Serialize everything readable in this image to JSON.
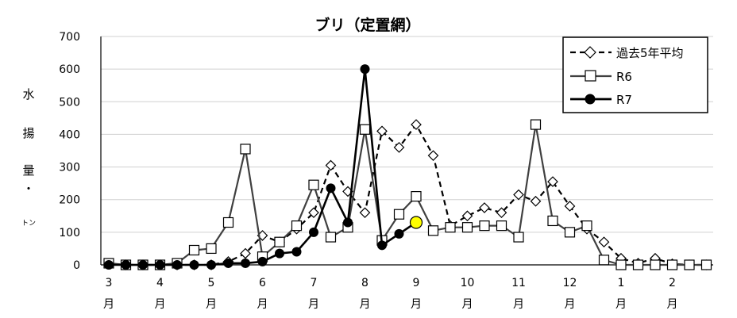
{
  "chart_data": {
    "type": "line",
    "title": "ブリ（定置網）",
    "ylabel_chars": [
      "水",
      "揚",
      "量",
      "・",
      "トン"
    ],
    "ylim": [
      0,
      700
    ],
    "yticks": [
      0,
      100,
      200,
      300,
      400,
      500,
      600,
      700
    ],
    "grid": true,
    "legend_position": "top-right",
    "month_labels": [
      {
        "num": "3",
        "unit": "月",
        "x_index": 0
      },
      {
        "num": "4",
        "unit": "月",
        "x_index": 3
      },
      {
        "num": "5",
        "unit": "月",
        "x_index": 6
      },
      {
        "num": "6",
        "unit": "月",
        "x_index": 9
      },
      {
        "num": "7",
        "unit": "月",
        "x_index": 12
      },
      {
        "num": "8",
        "unit": "月",
        "x_index": 15
      },
      {
        "num": "9",
        "unit": "月",
        "x_index": 18
      },
      {
        "num": "10",
        "unit": "月",
        "x_index": 21
      },
      {
        "num": "11",
        "unit": "月",
        "x_index": 24
      },
      {
        "num": "12",
        "unit": "月",
        "x_index": 27
      },
      {
        "num": "1",
        "unit": "月",
        "x_index": 30
      },
      {
        "num": "2",
        "unit": "月",
        "x_index": 33
      }
    ],
    "x_count": 36,
    "series": [
      {
        "name": "過去5年平均",
        "style": "dashed-diamond",
        "color": "#000000",
        "values": [
          3,
          0,
          0,
          0,
          0,
          0,
          0,
          10,
          35,
          90,
          70,
          110,
          160,
          305,
          225,
          160,
          410,
          360,
          430,
          335,
          120,
          150,
          175,
          160,
          215,
          195,
          255,
          180,
          110,
          70,
          20,
          5,
          20,
          3,
          0,
          0
        ]
      },
      {
        "name": "R6",
        "style": "solid-square",
        "color": "#404040",
        "values": [
          5,
          0,
          0,
          0,
          5,
          45,
          50,
          130,
          355,
          25,
          70,
          120,
          245,
          85,
          115,
          415,
          75,
          155,
          210,
          105,
          115,
          115,
          120,
          120,
          85,
          430,
          135,
          100,
          120,
          15,
          0,
          0,
          0,
          0,
          0,
          0
        ]
      },
      {
        "name": "R7",
        "style": "solid-circle",
        "color": "#000000",
        "values": [
          0,
          0,
          0,
          0,
          0,
          0,
          0,
          5,
          5,
          10,
          35,
          40,
          100,
          235,
          130,
          600,
          60,
          95,
          130
        ]
      }
    ],
    "highlight_point": {
      "series": "R7",
      "x_index": 18,
      "value": 130,
      "color": "#ffff00"
    }
  }
}
